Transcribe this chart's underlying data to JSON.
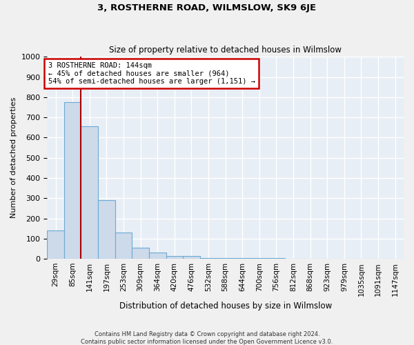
{
  "title": "3, ROSTHERNE ROAD, WILMSLOW, SK9 6JE",
  "subtitle": "Size of property relative to detached houses in Wilmslow",
  "xlabel": "Distribution of detached houses by size in Wilmslow",
  "ylabel": "Number of detached properties",
  "bar_color": "#ccdaea",
  "bar_edge_color": "#6aaad4",
  "background_color": "#e8eef5",
  "grid_color": "#ffffff",
  "bin_labels": [
    "29sqm",
    "85sqm",
    "141sqm",
    "197sqm",
    "253sqm",
    "309sqm",
    "364sqm",
    "420sqm",
    "476sqm",
    "532sqm",
    "588sqm",
    "644sqm",
    "700sqm",
    "756sqm",
    "812sqm",
    "868sqm",
    "923sqm",
    "979sqm",
    "1035sqm",
    "1091sqm",
    "1147sqm"
  ],
  "bar_heights": [
    140,
    775,
    655,
    290,
    130,
    55,
    30,
    15,
    15,
    5,
    3,
    3,
    2,
    2,
    1,
    1,
    1,
    1,
    1,
    1,
    1
  ],
  "red_line_x": 1.5,
  "annotation_text": "3 ROSTHERNE ROAD: 144sqm\n← 45% of detached houses are smaller (964)\n54% of semi-detached houses are larger (1,151) →",
  "annotation_box_color": "#ffffff",
  "annotation_box_edge_color": "#cc0000",
  "red_line_color": "#aa0000",
  "ylim": [
    0,
    1000
  ],
  "yticks": [
    0,
    100,
    200,
    300,
    400,
    500,
    600,
    700,
    800,
    900,
    1000
  ],
  "footer_line1": "Contains HM Land Registry data © Crown copyright and database right 2024.",
  "footer_line2": "Contains public sector information licensed under the Open Government Licence v3.0."
}
